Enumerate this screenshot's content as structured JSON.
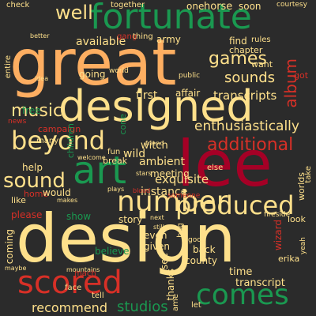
{
  "cloud": {
    "background": "#2b2b2b",
    "words": [
      {
        "text": "great",
        "color": "#fdae61"
      },
      {
        "text": "fortunate",
        "color": "#1a9850"
      },
      {
        "text": "designed",
        "color": "#fee08b"
      },
      {
        "text": "lee",
        "color": "#a50026"
      },
      {
        "text": "design",
        "color": "#fee08b"
      },
      {
        "text": "art",
        "color": "#1a9850"
      },
      {
        "text": "number",
        "color": "#fee08b"
      },
      {
        "text": "scored",
        "color": "#d73027"
      },
      {
        "text": "comes",
        "color": "#1a9850"
      },
      {
        "text": "produced",
        "color": "#fee08b"
      },
      {
        "text": "beyond",
        "color": "#fee08b"
      },
      {
        "text": "additional",
        "color": "#d73027"
      },
      {
        "text": "sound",
        "color": "#fee08b"
      },
      {
        "text": "games",
        "color": "#fee08b"
      },
      {
        "text": "music",
        "color": "#fee08b"
      },
      {
        "text": "well",
        "color": "#fee08b"
      },
      {
        "text": "sounds",
        "color": "#fee08b"
      },
      {
        "text": "album",
        "color": "#d73027"
      },
      {
        "text": "enthusiastically",
        "color": "#fee08b"
      },
      {
        "text": "recommend",
        "color": "#fee08b"
      },
      {
        "text": "studios",
        "color": "#1a9850"
      },
      {
        "text": "transcripts",
        "color": "#fee08b"
      },
      {
        "text": "exquisite",
        "color": "#fee08b"
      },
      {
        "text": "ambient",
        "color": "#fee08b"
      },
      {
        "text": "instance",
        "color": "#fee08b"
      },
      {
        "text": "meeting",
        "color": "#fee08b"
      },
      {
        "text": "witch",
        "color": "#fee08b"
      },
      {
        "text": "wild",
        "color": "#fee08b"
      },
      {
        "text": "first",
        "color": "#fee08b"
      },
      {
        "text": "going",
        "color": "#fee08b"
      },
      {
        "text": "available",
        "color": "#fee08b"
      },
      {
        "text": "army",
        "color": "#fee08b"
      },
      {
        "text": "find",
        "color": "#fee08b"
      },
      {
        "text": "chapter",
        "color": "#fee08b"
      },
      {
        "text": "one",
        "color": "#fee08b"
      },
      {
        "text": "horse",
        "color": "#fee08b"
      },
      {
        "text": "soon",
        "color": "#fee08b"
      },
      {
        "text": "together",
        "color": "#fee08b"
      },
      {
        "text": "check",
        "color": "#fee08b"
      },
      {
        "text": "campaign",
        "color": "#d73027"
      },
      {
        "text": "news",
        "color": "#d73027"
      },
      {
        "text": "free",
        "color": "#1a9850"
      },
      {
        "text": "children",
        "color": "#1a9850"
      },
      {
        "text": "help",
        "color": "#fee08b"
      },
      {
        "text": "home",
        "color": "#d73027"
      },
      {
        "text": "would",
        "color": "#fee08b"
      },
      {
        "text": "like",
        "color": "#fee08b"
      },
      {
        "text": "please",
        "color": "#d73027"
      },
      {
        "text": "coming",
        "color": "#fee08b"
      },
      {
        "text": "show",
        "color": "#1a9850"
      },
      {
        "text": "story",
        "color": "#fee08b"
      },
      {
        "text": "believe",
        "color": "#1a9850"
      },
      {
        "text": "even",
        "color": "#fee08b"
      },
      {
        "text": "given",
        "color": "#fee08b"
      },
      {
        "text": "back",
        "color": "#fee08b"
      },
      {
        "text": "county",
        "color": "#fee08b"
      },
      {
        "text": "time",
        "color": "#fee08b"
      },
      {
        "text": "transcript",
        "color": "#fee08b"
      },
      {
        "text": "erika",
        "color": "#fee08b"
      },
      {
        "text": "wizard",
        "color": "#d73027"
      },
      {
        "text": "look",
        "color": "#fee08b"
      },
      {
        "text": "worlds",
        "color": "#fee08b"
      },
      {
        "text": "take",
        "color": "#fee08b"
      },
      {
        "text": "else",
        "color": "#fee08b"
      },
      {
        "text": "affair",
        "color": "#fee08b"
      },
      {
        "text": "thanks",
        "color": "#fee08b"
      },
      {
        "text": "see",
        "color": "#fee08b"
      },
      {
        "text": "let",
        "color": "#fee08b"
      },
      {
        "text": "tell",
        "color": "#fee08b"
      },
      {
        "text": "want",
        "color": "#fee08b"
      },
      {
        "text": "got",
        "color": "#d73027"
      },
      {
        "text": "rules",
        "color": "#fee08b"
      },
      {
        "text": "gang",
        "color": "#d73027"
      },
      {
        "text": "thing",
        "color": "#fee08b"
      },
      {
        "text": "break",
        "color": "#fee08b"
      },
      {
        "text": "fun",
        "color": "#fee08b"
      },
      {
        "text": "cone",
        "color": "#1a9850"
      },
      {
        "text": "entire",
        "color": "#fee08b"
      },
      {
        "text": "courtesy",
        "color": "#fee08b"
      },
      {
        "text": "world",
        "color": "#fee08b"
      },
      {
        "text": "public",
        "color": "#fee08b"
      },
      {
        "text": "many",
        "color": "#fee08b"
      },
      {
        "text": "friend",
        "color": "#fee08b"
      },
      {
        "text": "stars",
        "color": "#fee08b"
      },
      {
        "text": "plays",
        "color": "#fee08b"
      },
      {
        "text": "blood",
        "color": "#d73027"
      },
      {
        "text": "someone",
        "color": "#d73027"
      },
      {
        "text": "next",
        "color": "#fee08b"
      },
      {
        "text": "still",
        "color": "#fee08b"
      },
      {
        "text": "bag",
        "color": "#fee08b"
      },
      {
        "text": "good",
        "color": "#fee08b"
      },
      {
        "text": "face",
        "color": "#fee08b"
      },
      {
        "text": "ame",
        "color": "#fee08b"
      },
      {
        "text": "yeah",
        "color": "#fee08b"
      },
      {
        "text": "maybe",
        "color": "#fee08b"
      },
      {
        "text": "welcome",
        "color": "#fee08b"
      },
      {
        "text": "idea",
        "color": "#fee08b"
      },
      {
        "text": "fireside",
        "color": "#fee08b"
      },
      {
        "text": "makes",
        "color": "#fee08b"
      },
      {
        "text": "better",
        "color": "#fee08b"
      },
      {
        "text": "mountains",
        "color": "#fee08b"
      },
      {
        "text": "mach",
        "color": "#d73027"
      }
    ]
  }
}
